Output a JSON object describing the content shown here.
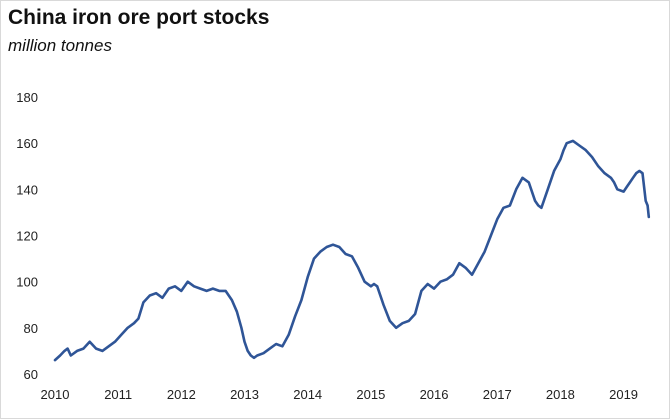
{
  "chart_data": {
    "type": "line",
    "title": "China iron ore port stocks",
    "subtitle": "million tonnes",
    "xlabel": "",
    "ylabel": "",
    "xlim": [
      2010,
      2019.45
    ],
    "ylim": [
      60,
      180
    ],
    "y_ticks": [
      60,
      80,
      100,
      120,
      140,
      160,
      180
    ],
    "x_ticks": [
      2010,
      2011,
      2012,
      2013,
      2014,
      2015,
      2016,
      2017,
      2018,
      2019
    ],
    "grid": false,
    "legend": "none",
    "series": [
      {
        "color": "#2f5597",
        "x": [
          2010.0,
          2010.08,
          2010.15,
          2010.2,
          2010.25,
          2010.35,
          2010.45,
          2010.55,
          2010.65,
          2010.75,
          2010.85,
          2010.95,
          2011.05,
          2011.15,
          2011.25,
          2011.32,
          2011.4,
          2011.5,
          2011.6,
          2011.7,
          2011.8,
          2011.9,
          2012.0,
          2012.1,
          2012.2,
          2012.3,
          2012.4,
          2012.5,
          2012.6,
          2012.7,
          2012.8,
          2012.88,
          2012.95,
          2013.0,
          2013.05,
          2013.1,
          2013.15,
          2013.2,
          2013.3,
          2013.4,
          2013.5,
          2013.6,
          2013.7,
          2013.8,
          2013.9,
          2014.0,
          2014.1,
          2014.2,
          2014.3,
          2014.4,
          2014.5,
          2014.6,
          2014.7,
          2014.8,
          2014.9,
          2015.0,
          2015.05,
          2015.1,
          2015.2,
          2015.3,
          2015.4,
          2015.5,
          2015.6,
          2015.7,
          2015.8,
          2015.9,
          2016.0,
          2016.1,
          2016.2,
          2016.3,
          2016.4,
          2016.5,
          2016.6,
          2016.7,
          2016.8,
          2016.9,
          2017.0,
          2017.1,
          2017.2,
          2017.3,
          2017.4,
          2017.5,
          2017.6,
          2017.65,
          2017.7,
          2017.8,
          2017.9,
          2018.0,
          2018.05,
          2018.1,
          2018.2,
          2018.3,
          2018.4,
          2018.5,
          2018.6,
          2018.7,
          2018.8,
          2018.85,
          2018.9,
          2019.0,
          2019.05,
          2019.1,
          2019.15,
          2019.2,
          2019.25,
          2019.3,
          2019.35,
          2019.38,
          2019.4
        ],
        "values": [
          66,
          68,
          70,
          71,
          68,
          70,
          71,
          74,
          71,
          70,
          72,
          74,
          77,
          80,
          82,
          84,
          91,
          94,
          95,
          93,
          97,
          98,
          96,
          100,
          98,
          97,
          96,
          97,
          96,
          96,
          92,
          87,
          80,
          74,
          70,
          68,
          67,
          68,
          69,
          71,
          73,
          72,
          77,
          85,
          92,
          102,
          110,
          113,
          115,
          116,
          115,
          112,
          111,
          106,
          100,
          98,
          99,
          98,
          90,
          83,
          80,
          82,
          83,
          86,
          96,
          99,
          97,
          100,
          101,
          103,
          108,
          106,
          103,
          108,
          113,
          120,
          127,
          132,
          133,
          140,
          145,
          143,
          135,
          133,
          132,
          140,
          148,
          153,
          157,
          160,
          161,
          159,
          157,
          154,
          150,
          147,
          145,
          143,
          140,
          139,
          141,
          143,
          145,
          147,
          148,
          147,
          135,
          133,
          128
        ]
      }
    ]
  }
}
